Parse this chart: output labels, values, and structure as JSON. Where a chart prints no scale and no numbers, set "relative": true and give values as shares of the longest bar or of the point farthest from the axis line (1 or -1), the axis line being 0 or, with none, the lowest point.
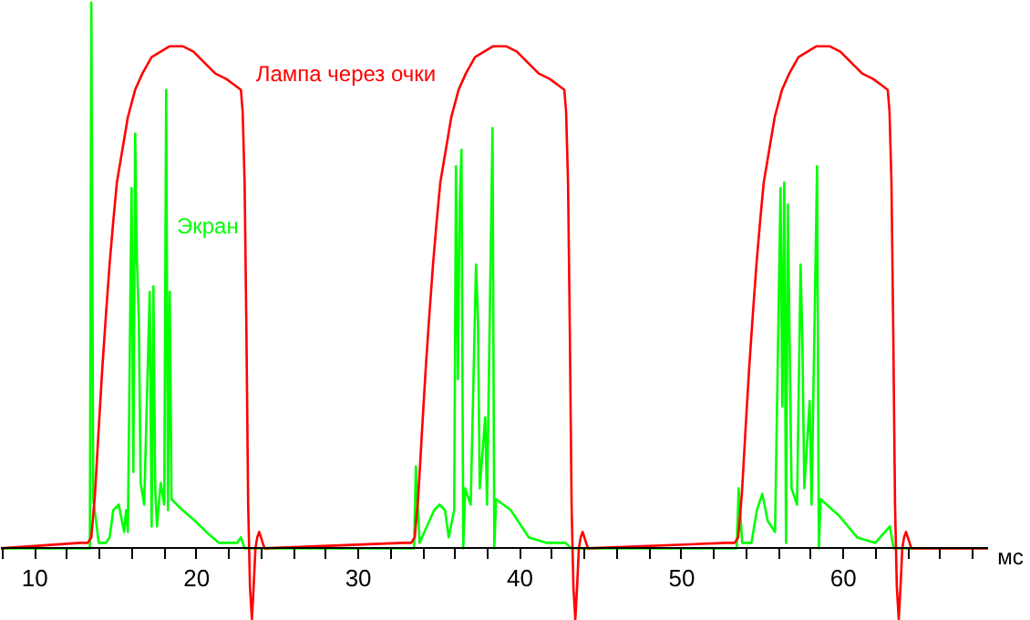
{
  "chart_data": {
    "type": "line",
    "relative": true,
    "xlabel": "мс",
    "xlim": [
      7.9,
      69
    ],
    "grid": false,
    "marker": "none",
    "line_style": "solid",
    "xticks": [
      {
        "value": 8,
        "label": null
      },
      10,
      {
        "value": 12,
        "label": null
      },
      {
        "value": 14,
        "label": null
      },
      {
        "value": 16,
        "label": null
      },
      {
        "value": 18,
        "label": null
      },
      20,
      {
        "value": 22,
        "label": null
      },
      {
        "value": 24,
        "label": null
      },
      {
        "value": 26,
        "label": null
      },
      {
        "value": 28,
        "label": null
      },
      30,
      {
        "value": 32,
        "label": null
      },
      {
        "value": 34,
        "label": null
      },
      {
        "value": 36,
        "label": null
      },
      {
        "value": 38,
        "label": null
      },
      40,
      {
        "value": 42,
        "label": null
      },
      {
        "value": 44,
        "label": null
      },
      {
        "value": 46,
        "label": null
      },
      {
        "value": 48,
        "label": null
      },
      50,
      {
        "value": 52,
        "label": null
      },
      {
        "value": 54,
        "label": null
      },
      {
        "value": 56,
        "label": null
      },
      {
        "value": 58,
        "label": null
      },
      60,
      {
        "value": 62,
        "label": null
      },
      {
        "value": 64,
        "label": null
      },
      {
        "value": 66,
        "label": null
      },
      {
        "value": 68,
        "label": null
      }
    ],
    "series": [
      {
        "name": "Экран",
        "color": "#00ff00",
        "x": [
          7.9,
          13.4,
          13.49,
          13.61,
          13.95,
          14.4,
          14.62,
          14.85,
          15.19,
          15.52,
          15.64,
          15.75,
          15.98,
          16.09,
          16.2,
          16.31,
          16.43,
          16.54,
          16.76,
          17.1,
          17.22,
          17.33,
          17.44,
          17.55,
          17.78,
          18.0,
          18.12,
          18.23,
          18.34,
          18.45,
          19.13,
          19.92,
          20.6,
          21.39,
          22.51,
          22.74,
          22.97,
          33.45,
          33.56,
          33.79,
          34.69,
          35.03,
          35.36,
          35.59,
          35.93,
          36.04,
          36.16,
          36.27,
          36.38,
          36.49,
          36.61,
          36.95,
          37.28,
          37.4,
          37.51,
          37.85,
          37.96,
          38.3,
          38.41,
          38.52,
          39.43,
          40.55,
          41.68,
          42.81,
          43.15,
          53.4,
          53.52,
          53.74,
          54.31,
          54.65,
          54.98,
          55.32,
          55.77,
          56.11,
          56.22,
          56.34,
          56.45,
          56.56,
          56.79,
          57.13,
          57.35,
          57.46,
          57.58,
          57.91,
          58.03,
          58.25,
          58.37,
          58.48,
          58.59,
          59.72,
          60.85,
          61.97,
          62.87,
          63.1,
          69
        ],
        "values": [
          0,
          0,
          1.0,
          0.09,
          0.01,
          0.01,
          0.02,
          0.07,
          0.08,
          0.03,
          0.07,
          0.03,
          0.66,
          0.14,
          0.76,
          0.53,
          0.42,
          0.12,
          0.08,
          0.47,
          0.04,
          0.48,
          0.11,
          0.04,
          0.12,
          0.08,
          0.84,
          0.07,
          0.47,
          0.09,
          0.07,
          0.05,
          0.03,
          0.01,
          0.01,
          0.02,
          0,
          0,
          0.15,
          0.01,
          0.07,
          0.08,
          0.07,
          0.02,
          0.07,
          0.7,
          0.31,
          0.63,
          0.73,
          0,
          0.11,
          0.08,
          0.52,
          0.42,
          0.11,
          0.24,
          0.08,
          0.77,
          0,
          0.09,
          0.07,
          0.02,
          0.01,
          0.01,
          0,
          0,
          0.11,
          0.01,
          0.01,
          0.07,
          0.1,
          0.05,
          0.03,
          0.66,
          0.26,
          0.67,
          0.01,
          0.63,
          0.11,
          0.08,
          0.52,
          0.38,
          0.11,
          0.27,
          0.08,
          0.48,
          0.7,
          0,
          0.09,
          0.06,
          0.02,
          0.01,
          0.04,
          0,
          0
        ]
      },
      {
        "name": "Лампа через очки",
        "color": "#ff0000",
        "x": [
          7.9,
          12.82,
          13.27,
          13.49,
          13.72,
          13.95,
          14.17,
          14.4,
          14.62,
          14.85,
          15.07,
          15.41,
          15.75,
          16.2,
          16.65,
          17.22,
          17.78,
          18.34,
          19.13,
          19.81,
          20.48,
          21.16,
          21.84,
          22.29,
          22.74,
          22.85,
          22.97,
          23.08,
          23.19,
          23.3,
          23.42,
          23.53,
          23.64,
          23.75,
          23.87,
          23.98,
          24.2,
          32.82,
          33.27,
          33.49,
          33.72,
          33.95,
          34.17,
          34.4,
          34.62,
          34.85,
          35.07,
          35.41,
          35.75,
          36.2,
          36.65,
          37.22,
          37.78,
          38.34,
          39.13,
          39.81,
          40.48,
          41.16,
          41.84,
          42.29,
          42.74,
          42.85,
          42.97,
          43.08,
          43.19,
          43.3,
          43.42,
          43.53,
          43.64,
          43.75,
          43.87,
          43.98,
          44.2,
          52.82,
          53.27,
          53.49,
          53.72,
          53.95,
          54.17,
          54.4,
          54.62,
          54.85,
          55.07,
          55.41,
          55.75,
          56.2,
          56.65,
          57.22,
          57.78,
          58.34,
          59.13,
          59.81,
          60.48,
          61.16,
          61.84,
          62.29,
          62.74,
          62.85,
          62.97,
          63.08,
          63.19,
          63.3,
          63.42,
          63.53,
          63.64,
          63.75,
          63.87,
          63.98,
          64.2,
          69
        ],
        "values": [
          0,
          0.01,
          0.01,
          0.02,
          0.1,
          0.22,
          0.33,
          0.43,
          0.52,
          0.6,
          0.67,
          0.73,
          0.79,
          0.84,
          0.87,
          0.9,
          0.91,
          0.92,
          0.92,
          0.91,
          0.89,
          0.87,
          0.86,
          0.85,
          0.84,
          0.8,
          0.67,
          0.4,
          0.08,
          -0.07,
          -0.13,
          -0.07,
          0,
          0.02,
          0.03,
          0.02,
          0,
          0.01,
          0.01,
          0.02,
          0.1,
          0.22,
          0.33,
          0.43,
          0.52,
          0.6,
          0.67,
          0.73,
          0.79,
          0.84,
          0.87,
          0.9,
          0.91,
          0.92,
          0.92,
          0.91,
          0.89,
          0.87,
          0.86,
          0.85,
          0.84,
          0.8,
          0.67,
          0.4,
          0.08,
          -0.07,
          -0.13,
          -0.07,
          0,
          0.02,
          0.03,
          0.02,
          0,
          0.01,
          0.01,
          0.02,
          0.1,
          0.22,
          0.33,
          0.43,
          0.52,
          0.6,
          0.67,
          0.73,
          0.79,
          0.84,
          0.87,
          0.9,
          0.91,
          0.92,
          0.92,
          0.91,
          0.89,
          0.87,
          0.86,
          0.85,
          0.84,
          0.8,
          0.67,
          0.4,
          0.08,
          -0.07,
          -0.13,
          -0.07,
          0,
          0.02,
          0.03,
          0.02,
          0,
          0
        ]
      }
    ]
  }
}
